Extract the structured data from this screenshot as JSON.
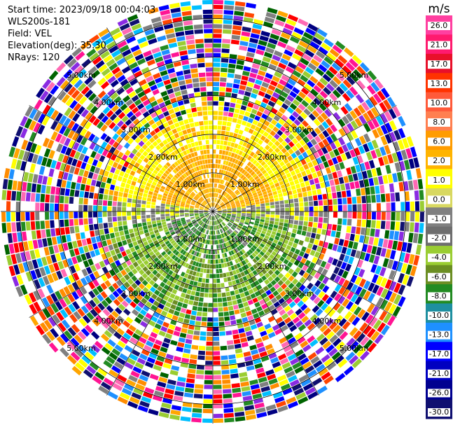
{
  "info": {
    "start_time": "Start time: 2023/09/18 00:04:03",
    "instrument": "WLS200s-181",
    "field": "Field: VEL",
    "elevation": "Elevation(deg): 35.30",
    "nrays": "NRays: 120"
  },
  "colorbar": {
    "unit": "m/s",
    "ticks": [
      "26.0",
      "21.0",
      "17.0",
      "13.0",
      "10.0",
      "8.0",
      "6.0",
      "2.0",
      "1.0",
      "0.0",
      "-1.0",
      "-2.0",
      "-4.0",
      "-6.0",
      "-8.0",
      "-10.0",
      "-13.0",
      "-17.0",
      "-21.0",
      "-26.0",
      "-30.0"
    ],
    "colors": [
      "#ff3fa0",
      "#ff1a6e",
      "#e8102a",
      "#ff3300",
      "#ff5a3a",
      "#ff7f50",
      "#ff9c00",
      "#ffb400",
      "#ffff00",
      "#d8d860",
      "#808080",
      "#6e6e6e",
      "#9acd32",
      "#6b8e23",
      "#228b22",
      "#1e8fa0",
      "#1e90ff",
      "#0000ff",
      "#0000c0",
      "#000090",
      "#101070"
    ]
  },
  "chart_data": {
    "type": "heatmap",
    "projection": "polar-ppi",
    "nrays": 120,
    "range_rings_km": [
      1.0,
      2.0,
      3.0,
      4.0,
      5.0
    ],
    "range_labels": [
      "1.00km",
      "2.00km",
      "3.00km",
      "4.00km",
      "5.00km"
    ],
    "max_range_km": 5.5,
    "field": "VEL",
    "unit": "m/s",
    "colorbar_ticks": [
      26.0,
      21.0,
      17.0,
      13.0,
      10.0,
      8.0,
      6.0,
      2.0,
      1.0,
      0.0,
      -1.0,
      -2.0,
      -4.0,
      -6.0,
      -8.0,
      -10.0,
      -13.0,
      -17.0,
      -21.0,
      -26.0,
      -30.0
    ]
  }
}
